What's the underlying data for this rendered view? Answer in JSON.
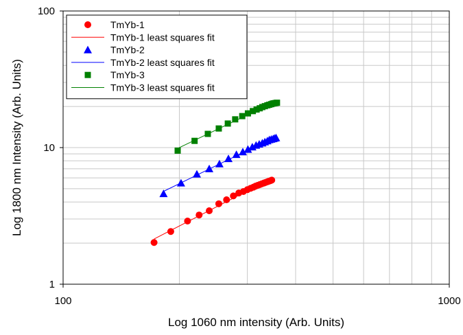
{
  "chart_data": {
    "type": "scatter",
    "title": "",
    "xlabel": "Log 1060 nm intensity (Arb. Units)",
    "ylabel": "Log 1800 nm Intensity (Arb. Units)",
    "xscale": "log",
    "yscale": "log",
    "xlim": [
      100,
      1000
    ],
    "ylim": [
      1,
      100
    ],
    "x_ticks": [
      "100",
      "1000"
    ],
    "y_ticks": [
      "1",
      "10",
      "100"
    ],
    "grid": true,
    "legend_position": "top-left",
    "series": [
      {
        "name": "TmYb-1",
        "marker": "circle",
        "color": "#ff0000",
        "fit_name": "TmYb-1 least squares fit",
        "x": [
          172,
          190,
          210,
          225,
          239,
          253,
          265,
          276,
          285,
          293,
          300,
          306,
          311,
          315,
          319,
          323,
          327,
          331,
          334,
          337,
          340,
          343,
          345,
          347
        ],
        "y": [
          2.02,
          2.43,
          2.9,
          3.21,
          3.45,
          3.88,
          4.15,
          4.43,
          4.65,
          4.77,
          4.92,
          5.04,
          5.13,
          5.22,
          5.29,
          5.36,
          5.43,
          5.5,
          5.55,
          5.6,
          5.66,
          5.7,
          5.74,
          5.78
        ]
      },
      {
        "name": "TmYb-2",
        "marker": "triangle",
        "color": "#0000ff",
        "fit_name": "TmYb-2 least squares fit",
        "x": [
          182,
          202,
          222,
          239,
          254,
          268,
          281,
          292,
          301,
          309,
          316,
          322,
          328,
          333,
          338,
          342,
          346,
          350,
          353,
          356
        ],
        "y": [
          4.6,
          5.5,
          6.4,
          7.0,
          7.6,
          8.3,
          8.9,
          9.3,
          9.7,
          10.1,
          10.4,
          10.6,
          10.8,
          11.0,
          11.2,
          11.4,
          11.5,
          11.6,
          11.7,
          11.8
        ]
      },
      {
        "name": "TmYb-3",
        "marker": "square",
        "color": "#008000",
        "fit_name": "TmYb-3 least squares fit",
        "x": [
          198,
          219,
          237,
          253,
          267,
          279,
          291,
          301,
          310,
          317,
          323,
          328,
          333,
          338,
          342,
          346,
          349,
          352,
          355,
          358
        ],
        "y": [
          9.5,
          11.2,
          12.6,
          13.8,
          15.0,
          16.1,
          17.0,
          17.8,
          18.5,
          19.0,
          19.4,
          19.8,
          20.1,
          20.4,
          20.6,
          20.8,
          21.0,
          21.1,
          21.2,
          21.3
        ]
      }
    ]
  }
}
